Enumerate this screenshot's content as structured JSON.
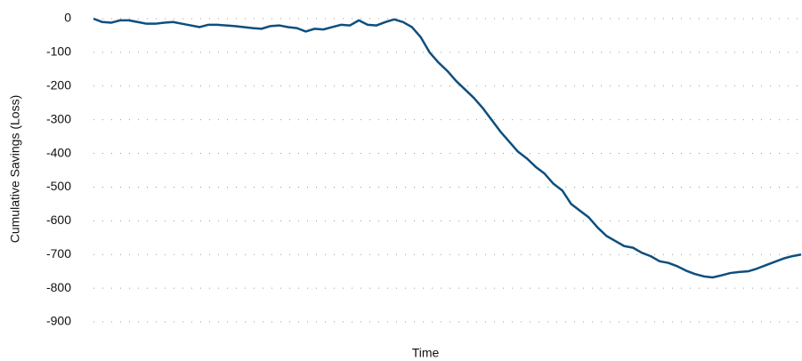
{
  "chart_data": {
    "type": "line",
    "x_label": "Time",
    "y_label": "Cumulative Savings (Loss)",
    "categories": [
      null,
      null,
      null,
      null,
      null,
      null,
      null,
      null,
      null,
      null,
      null,
      null,
      null,
      null,
      null,
      null,
      null,
      null,
      null,
      null,
      null,
      null,
      null,
      null,
      null,
      null,
      null,
      null,
      null,
      null,
      null,
      null,
      null,
      null,
      null,
      null,
      null,
      null,
      null,
      null,
      null,
      null,
      null,
      null,
      null,
      null,
      null,
      null,
      null,
      null,
      null,
      null,
      null,
      null,
      null,
      null,
      null,
      null,
      null,
      null,
      null,
      null,
      null,
      null,
      null,
      null,
      null,
      null,
      null,
      null,
      null,
      null,
      null,
      null,
      null,
      null,
      null,
      null,
      null,
      null,
      null
    ],
    "series": [
      {
        "color": "#0d4f7e",
        "values": [
          0,
          -10,
          -12,
          -5,
          -5,
          -10,
          -15,
          -15,
          -12,
          -10,
          -15,
          -20,
          -25,
          -18,
          -18,
          -20,
          -22,
          -25,
          -28,
          -30,
          -22,
          -20,
          -25,
          -28,
          -38,
          -30,
          -32,
          -25,
          -18,
          -20,
          -5,
          -18,
          -20,
          -10,
          -2,
          -10,
          -25,
          -55,
          -100,
          -130,
          -155,
          -185,
          -210,
          -235,
          -265,
          -300,
          -335,
          -365,
          -395,
          -415,
          -440,
          -460,
          -490,
          -510,
          -550,
          -570,
          -590,
          -620,
          -645,
          -660,
          -675,
          -680,
          -695,
          -705,
          -720,
          -725,
          -735,
          -748,
          -758,
          -765,
          -768,
          -762,
          -755,
          -752,
          -750,
          -742,
          -732,
          -722,
          -712,
          -705,
          -700
        ]
      }
    ],
    "ylim": [
      -900,
      0
    ],
    "yticks": [
      0,
      -100,
      -200,
      -300,
      -400,
      -500,
      -600,
      -700,
      -800,
      -900
    ],
    "grid": true
  }
}
